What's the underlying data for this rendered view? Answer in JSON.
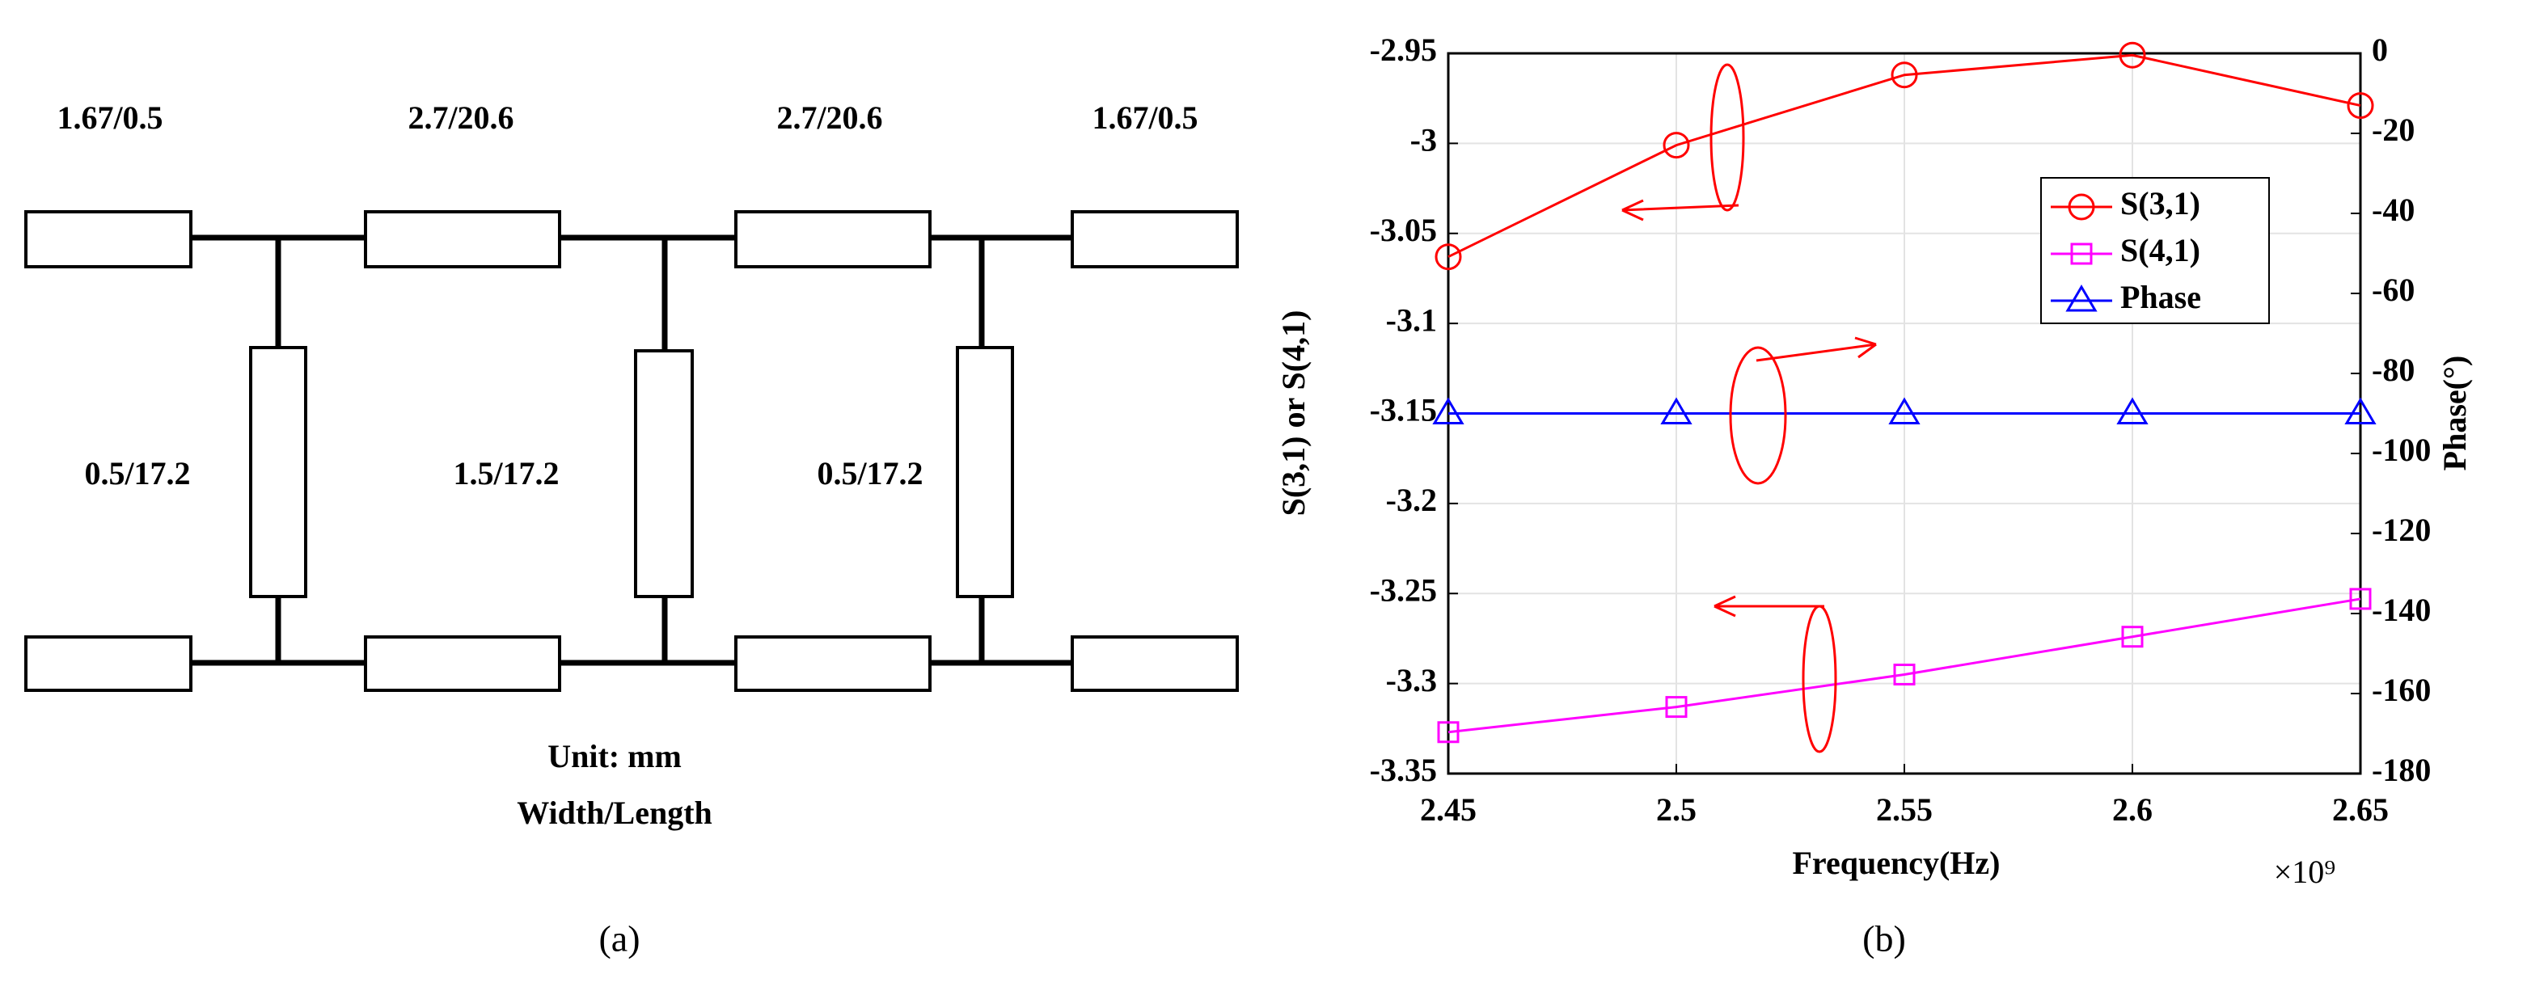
{
  "diagram": {
    "top_labels": [
      "1.67/0.5",
      "2.7/20.6",
      "2.7/20.6",
      "1.67/0.5"
    ],
    "stub_labels": [
      "0.5/17.2",
      "1.5/17.2",
      "0.5/17.2"
    ],
    "unit": "Unit: mm",
    "note": "Width/Length",
    "caption": "(a)"
  },
  "chart_data": {
    "type": "line",
    "caption": "(b)",
    "x_label": "Frequency(Hz)",
    "x_exponent_label": "×10⁹",
    "y_label": "S(3,1) or S(4,1)",
    "y2_label": "Phase(°)",
    "x": [
      2450000000,
      2500000000,
      2550000000,
      2600000000,
      2650000000
    ],
    "xlim": [
      2450000000,
      2650000000
    ],
    "xticks": [
      {
        "value": 2450000000,
        "label": "2.45"
      },
      {
        "value": 2500000000,
        "label": "2.5"
      },
      {
        "value": 2550000000,
        "label": "2.55"
      },
      {
        "value": 2600000000,
        "label": "2.6"
      },
      {
        "value": 2650000000,
        "label": "2.65"
      }
    ],
    "ylim": [
      -3.35,
      -2.95
    ],
    "yticks": [
      -3.35,
      -3.3,
      -3.25,
      -3.2,
      -3.15,
      -3.1,
      -3.05,
      -3,
      -2.95
    ],
    "y2lim": [
      -180,
      0
    ],
    "y2ticks": [
      -180,
      -160,
      -140,
      -120,
      -100,
      -80,
      -60,
      -40,
      -20,
      0
    ],
    "grid": true,
    "legend": "upper right",
    "series": [
      {
        "name": "S(3,1)",
        "color": "#ff0000",
        "marker": "circle",
        "values": [
          -3.063,
          -3.001,
          -2.962,
          -2.951,
          -2.979
        ]
      },
      {
        "name": "S(4,1)",
        "color": "#ff00ff",
        "marker": "square",
        "values": [
          -3.327,
          -3.313,
          -3.295,
          -3.274,
          -3.253
        ]
      },
      {
        "name": "Phase",
        "color": "#0000ff",
        "marker": "triangle",
        "axis": "y2",
        "values": [
          -90,
          -90,
          -90,
          -90,
          -90
        ]
      }
    ]
  }
}
